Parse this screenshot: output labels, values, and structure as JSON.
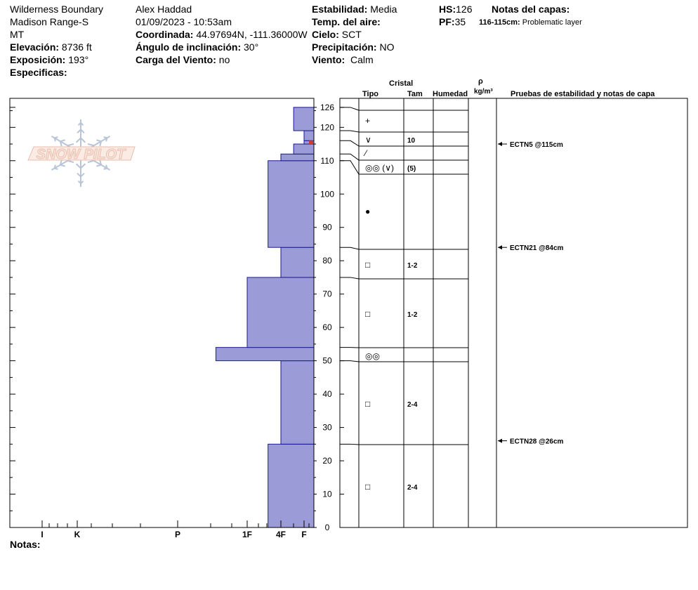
{
  "header": {
    "location": "Wilderness Boundary",
    "range": "Madison Range-S",
    "state": "MT",
    "elevation_label": "Elevación:",
    "elevation_value": "8736 ft",
    "aspect_label": "Exposición:",
    "aspect_value": "193°",
    "specifics_label": "Especificas:",
    "observer": "Alex Haddad",
    "datetime": "01/09/2023 - 10:53am",
    "coord_label": "Coordinada:",
    "coord_value": "44.97694N, -111.36000W",
    "slope_label": "Ángulo de inclinación:",
    "slope_value": "30°",
    "wind_load_label": "Carga del Viento:",
    "wind_load_value": "no",
    "stability_label": "Estabilidad:",
    "stability_value": "Media",
    "air_temp_label": "Temp. del aire:",
    "sky_label": "Cielo:",
    "sky_value": "SCT",
    "precip_label": "Precipitación:",
    "precip_value": "NO",
    "wind_label": "Viento:",
    "wind_value": "Calm",
    "hs_label": "HS:",
    "hs_value": "126",
    "pf_label": "PF:",
    "pf_value": "35",
    "layer_notes_label": "Notas del capas:",
    "layer_note_range": "116-115cm:",
    "layer_note_text": "Problematic layer"
  },
  "columns": {
    "crystal": "Cristal",
    "type": "Tipo",
    "size": "Tam",
    "humidity": "Humedad",
    "density_symbol": "ρ",
    "density_unit": "kg/m³",
    "tests": "Pruebas de estabilidad y notas de capa"
  },
  "footer": {
    "notes_label": "Notas:"
  },
  "logo": {
    "text": "SNOW PILOT"
  },
  "colors": {
    "hardness_fill": "#9b9bd7",
    "hardness_stroke": "#1a1a8c"
  },
  "chart_data": {
    "type": "bar",
    "ylim": [
      0,
      126
    ],
    "y_ticks": [
      0,
      10,
      20,
      30,
      40,
      50,
      60,
      70,
      80,
      90,
      100,
      110,
      120,
      126
    ],
    "hardness_scale": [
      "I",
      "K",
      "P",
      "1F",
      "4F",
      "F"
    ],
    "hardness_values": {
      "F": 1,
      "4F": 2,
      "1F": 3,
      "P": 4,
      "K": 5,
      "I": 6
    },
    "layers": [
      {
        "bottom": 0,
        "top": 25,
        "hardness": "1F-"
      },
      {
        "bottom": 25,
        "top": 50,
        "hardness": "4F"
      },
      {
        "bottom": 50,
        "top": 54,
        "hardness": "1F+"
      },
      {
        "bottom": 54,
        "top": 75,
        "hardness": "1F"
      },
      {
        "bottom": 75,
        "top": 84,
        "hardness": "4F"
      },
      {
        "bottom": 84,
        "top": 110,
        "hardness": "1F-"
      },
      {
        "bottom": 110,
        "top": 112,
        "hardness": "4F"
      },
      {
        "bottom": 112,
        "top": 115,
        "hardness": "F+"
      },
      {
        "bottom": 115,
        "top": 116,
        "hardness": "F"
      },
      {
        "bottom": 116,
        "top": 119,
        "hardness": "F"
      },
      {
        "bottom": 119,
        "top": 126,
        "hardness": "F+"
      }
    ],
    "crystals": [
      {
        "depth": 122,
        "type": "+",
        "size": ""
      },
      {
        "depth": 117.5,
        "type": "∨",
        "size": "10"
      },
      {
        "depth": 113.5,
        "type": "⁄",
        "size": ""
      },
      {
        "depth": 108.5,
        "type": "◎◎ (∨)",
        "size": "(5)"
      },
      {
        "depth": 95,
        "type": "●",
        "size": ""
      },
      {
        "depth": 79.5,
        "type": "□",
        "size": "1-2"
      },
      {
        "depth": 64.5,
        "type": "□",
        "size": "1-2"
      },
      {
        "depth": 52,
        "type": "◎◎",
        "size": ""
      },
      {
        "depth": 37.5,
        "type": "□",
        "size": "2-4"
      },
      {
        "depth": 12.5,
        "type": "□",
        "size": "2-4"
      }
    ],
    "tests": [
      {
        "depth": 115,
        "label": "ECTN5 @115cm"
      },
      {
        "depth": 84,
        "label": "ECTN21 @84cm"
      },
      {
        "depth": 26,
        "label": "ECTN28 @26cm"
      }
    ]
  }
}
